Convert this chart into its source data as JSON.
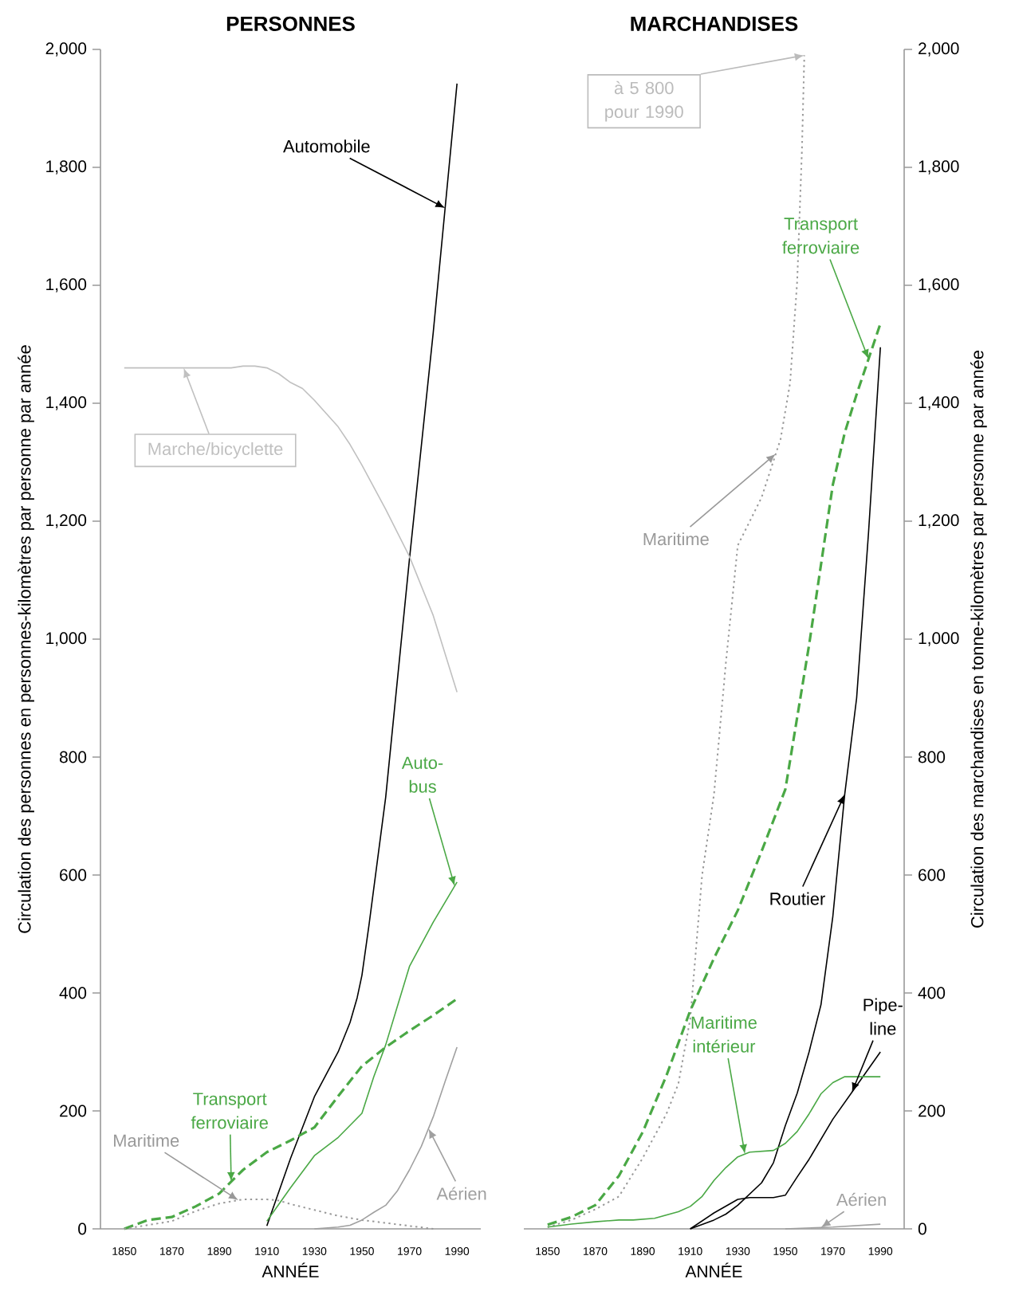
{
  "chart_data": [
    {
      "type": "line",
      "title": "PERSONNES",
      "xlabel": "ANNÉE",
      "ylabel": "Circulation des personnes en personnes-kilomètres par personne par année",
      "xlim": [
        1840,
        2000
      ],
      "ylim": [
        0,
        2000
      ],
      "xticks": [
        1850,
        1870,
        1890,
        1910,
        1930,
        1950,
        1970,
        1990
      ],
      "yticks": [
        0,
        200,
        400,
        600,
        800,
        {
          "value": 1000,
          "label": "1,000"
        },
        {
          "value": 1200,
          "label": "1,200"
        },
        {
          "value": 1400,
          "label": "1,400"
        },
        {
          "value": 1600,
          "label": "1,600"
        },
        {
          "value": 1800,
          "label": "1,800"
        },
        {
          "value": 2000,
          "label": "2,000"
        }
      ],
      "series": [
        {
          "name": "Automobile",
          "color": "#000000",
          "line_style": "solid",
          "x": [
            1910,
            1920,
            1930,
            1940,
            1945,
            1948,
            1950,
            1953,
            1960,
            1970,
            1980,
            1990
          ],
          "values": [
            5,
            120,
            224,
            300,
            350,
            392,
            430,
            516,
            732,
            1136,
            1520,
            1942
          ]
        },
        {
          "name": "Marche/bicyclette",
          "color": "#c0c0c0",
          "line_style": "solid",
          "x": [
            1850,
            1895,
            1900,
            1905,
            1910,
            1915,
            1920,
            1925,
            1930,
            1940,
            1945,
            1950,
            1960,
            1970,
            1980,
            1990
          ],
          "values": [
            1460,
            1460,
            1463,
            1463,
            1460,
            1450,
            1435,
            1425,
            1405,
            1360,
            1330,
            1295,
            1220,
            1140,
            1040,
            910
          ]
        },
        {
          "name": "Auto-bus",
          "color": "#4aa845",
          "line_style": "solid",
          "x": [
            1910,
            1920,
            1930,
            1940,
            1950,
            1955,
            1960,
            1970,
            1980,
            1990
          ],
          "values": [
            13,
            70,
            124,
            155,
            196,
            258,
            312,
            445,
            520,
            588
          ]
        },
        {
          "name": "Transport ferroviaire",
          "color": "#4aa845",
          "line_style": "dashed",
          "x": [
            1850,
            1860,
            1870,
            1880,
            1890,
            1900,
            1910,
            1920,
            1930,
            1940,
            1950,
            1960,
            1970,
            1980,
            1990
          ],
          "values": [
            0,
            15,
            20,
            38,
            60,
            100,
            130,
            150,
            172,
            225,
            276,
            308,
            336,
            362,
            390
          ]
        },
        {
          "name": "Maritime",
          "color": "#999999",
          "line_style": "dotted",
          "x": [
            1850,
            1870,
            1880,
            1890,
            1900,
            1910,
            1915,
            1920,
            1930,
            1940,
            1950,
            1960,
            1970,
            1980
          ],
          "values": [
            0,
            13,
            30,
            43,
            50,
            50,
            48,
            42,
            32,
            22,
            15,
            10,
            5,
            0
          ]
        },
        {
          "name": "Aérien",
          "color": "#a0a0a0",
          "line_style": "solid",
          "x": [
            1930,
            1940,
            1945,
            1950,
            1955,
            1960,
            1965,
            1970,
            1975,
            1980,
            1985,
            1990
          ],
          "values": [
            0,
            3,
            6,
            15,
            28,
            40,
            65,
            100,
            140,
            190,
            250,
            308
          ]
        }
      ]
    },
    {
      "type": "line",
      "title": "MARCHANDISES",
      "xlabel": "ANNÉE",
      "y2label": "Circulation des marchandises en tonne-kilomètres par personne par année",
      "xlim": [
        1840,
        2000
      ],
      "y2lim": [
        0,
        2000
      ],
      "xticks": [
        1850,
        1870,
        1890,
        1910,
        1930,
        1950,
        1970,
        1990
      ],
      "y2ticks": [
        0,
        200,
        400,
        600,
        800,
        {
          "value": 1000,
          "label": "1,000"
        },
        {
          "value": 1200,
          "label": "1,200"
        },
        {
          "value": 1400,
          "label": "1,400"
        },
        {
          "value": 1600,
          "label": "1,600"
        },
        {
          "value": 1800,
          "label": "1,800"
        },
        {
          "value": 2000,
          "label": "2,000"
        }
      ],
      "annotations": [
        "à 5 800 pour 1990"
      ],
      "series": [
        {
          "name": "Maritime",
          "color": "#999999",
          "line_style": "dotted",
          "axis": "y2",
          "x": [
            1850,
            1860,
            1870,
            1880,
            1890,
            1900,
            1905,
            1910,
            1915,
            1920,
            1925,
            1930,
            1940,
            1948,
            1952,
            1955,
            1957,
            1958
          ],
          "values": [
            3,
            15,
            33,
            55,
            120,
            195,
            246,
            356,
            600,
            737,
            960,
            1159,
            1240,
            1339,
            1434,
            1607,
            1830,
            1990
          ]
        },
        {
          "name": "Transport ferroviaire",
          "color": "#4aa845",
          "line_style": "dashed",
          "axis": "y2",
          "x": [
            1850,
            1860,
            1870,
            1880,
            1890,
            1900,
            1910,
            1920,
            1930,
            1940,
            1950,
            1960,
            1970,
            1975,
            1980,
            1990
          ],
          "values": [
            7,
            20,
            40,
            90,
            164,
            260,
            370,
            459,
            540,
            640,
            745,
            990,
            1262,
            1350,
            1415,
            1535
          ]
        },
        {
          "name": "Routier",
          "color": "#000000",
          "line_style": "solid",
          "axis": "y2",
          "x": [
            1910,
            1920,
            1925,
            1930,
            1940,
            1945,
            1950,
            1955,
            1960,
            1965,
            1970,
            1975,
            1980,
            1985,
            1990
          ],
          "values": [
            0,
            15,
            25,
            40,
            78,
            112,
            175,
            230,
            300,
            380,
            530,
            737,
            900,
            1180,
            1495
          ]
        },
        {
          "name": "Pipe-line",
          "color": "#000000",
          "line_style": "solid",
          "axis": "y2",
          "x": [
            1910,
            1920,
            1930,
            1935,
            1945,
            1950,
            1955,
            1960,
            1970,
            1980,
            1990
          ],
          "values": [
            0,
            27,
            50,
            53,
            53,
            57,
            88,
            118,
            186,
            243,
            300
          ]
        },
        {
          "name": "Maritime intérieur",
          "color": "#4aa845",
          "line_style": "solid",
          "axis": "y2",
          "x": [
            1850,
            1860,
            1870,
            1880,
            1886,
            1895,
            1905,
            1910,
            1915,
            1920,
            1925,
            1930,
            1935,
            1945,
            1950,
            1955,
            1960,
            1965,
            1970,
            1975,
            1990
          ],
          "values": [
            3,
            8,
            12,
            15,
            15,
            18,
            29,
            38,
            55,
            82,
            104,
            122,
            130,
            133,
            145,
            165,
            195,
            229,
            248,
            258,
            258
          ]
        },
        {
          "name": "Aérien",
          "color": "#a0a0a0",
          "line_style": "solid",
          "axis": "y2",
          "x": [
            1950,
            1970,
            1990
          ],
          "values": [
            0,
            3,
            8
          ]
        }
      ]
    }
  ]
}
